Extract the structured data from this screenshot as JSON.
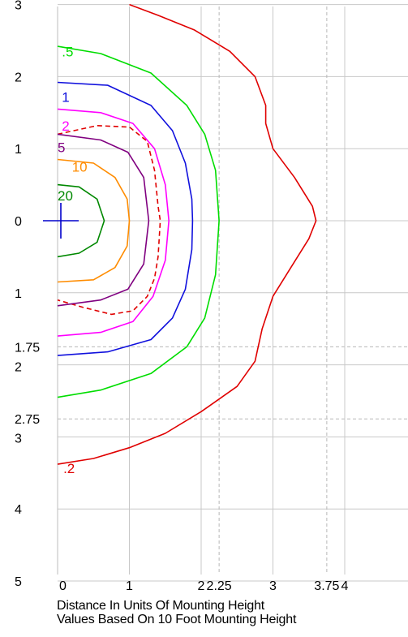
{
  "chart_data": {
    "type": "isofootcandle contour plot",
    "x_ticks": [
      {
        "value": 0,
        "label": "0"
      },
      {
        "value": 1,
        "label": "1"
      },
      {
        "value": 2,
        "label": "2"
      },
      {
        "value": 2.25,
        "label": "2.25",
        "dashed": true
      },
      {
        "value": 3,
        "label": "3"
      },
      {
        "value": 3.75,
        "label": "3.75",
        "dashed": true
      },
      {
        "value": 4,
        "label": "4"
      }
    ],
    "y_ticks": [
      {
        "value": 3,
        "label": "3"
      },
      {
        "value": 2,
        "label": "2"
      },
      {
        "value": 1,
        "label": "1"
      },
      {
        "value": 0,
        "label": "0"
      },
      {
        "value": -1,
        "label": "1"
      },
      {
        "value": -1.75,
        "label": "1.75",
        "dashed": true
      },
      {
        "value": -2,
        "label": "2"
      },
      {
        "value": -2.75,
        "label": "2.75",
        "dashed": true
      },
      {
        "value": -3,
        "label": "3"
      },
      {
        "value": -4,
        "label": "4"
      },
      {
        "value": -5,
        "label": "5"
      }
    ],
    "grid": true,
    "xlim": [
      0,
      4.8
    ],
    "ylim": [
      -5,
      3
    ],
    "caption_line1": "Distance In Units Of Mounting Height",
    "caption_line2": "Values Based On 10 Foot Mounting Height",
    "marker": {
      "type": "cross",
      "x": 0,
      "y": 0,
      "color": "#0000cc"
    },
    "contours": [
      {
        "label": ".2",
        "color": "#e00000",
        "dashed": false,
        "label_at": [
          0.08,
          -3.5
        ],
        "points": [
          [
            1.0,
            3.0
          ],
          [
            1.4,
            2.85
          ],
          [
            1.9,
            2.65
          ],
          [
            2.4,
            2.35
          ],
          [
            2.75,
            2.0
          ],
          [
            2.9,
            1.6
          ],
          [
            2.9,
            1.35
          ],
          [
            3.0,
            1.0
          ],
          [
            3.3,
            0.6
          ],
          [
            3.55,
            0.2
          ],
          [
            3.6,
            0
          ],
          [
            3.5,
            -0.25
          ],
          [
            3.25,
            -0.65
          ],
          [
            3.0,
            -1.05
          ],
          [
            2.85,
            -1.5
          ],
          [
            2.75,
            -1.95
          ],
          [
            2.5,
            -2.3
          ],
          [
            2.0,
            -2.65
          ],
          [
            1.5,
            -2.95
          ],
          [
            1.0,
            -3.15
          ],
          [
            0.5,
            -3.3
          ],
          [
            0,
            -3.38
          ]
        ]
      },
      {
        "label": ".5",
        "color": "#00dd00",
        "dashed": false,
        "label_at": [
          0.06,
          2.28
        ],
        "points": [
          [
            0,
            2.42
          ],
          [
            0.6,
            2.32
          ],
          [
            1.3,
            2.05
          ],
          [
            1.8,
            1.6
          ],
          [
            2.05,
            1.2
          ],
          [
            2.2,
            0.7
          ],
          [
            2.25,
            0
          ],
          [
            2.2,
            -0.75
          ],
          [
            2.05,
            -1.35
          ],
          [
            1.8,
            -1.75
          ],
          [
            1.3,
            -2.12
          ],
          [
            0.6,
            -2.35
          ],
          [
            0,
            -2.45
          ]
        ]
      },
      {
        "label": "1",
        "color": "#1010dd",
        "dashed": false,
        "label_at": [
          0.06,
          1.65
        ],
        "points": [
          [
            0,
            1.92
          ],
          [
            0.7,
            1.88
          ],
          [
            1.3,
            1.6
          ],
          [
            1.6,
            1.25
          ],
          [
            1.78,
            0.8
          ],
          [
            1.87,
            0.3
          ],
          [
            1.88,
            0
          ],
          [
            1.87,
            -0.4
          ],
          [
            1.78,
            -0.95
          ],
          [
            1.6,
            -1.35
          ],
          [
            1.3,
            -1.65
          ],
          [
            0.7,
            -1.82
          ],
          [
            0,
            -1.87
          ]
        ]
      },
      {
        "label": "2",
        "color": "#ff00ff",
        "dashed": false,
        "label_at": [
          0.06,
          1.25
        ],
        "points": [
          [
            0,
            1.55
          ],
          [
            0.6,
            1.5
          ],
          [
            1.05,
            1.35
          ],
          [
            1.35,
            1.0
          ],
          [
            1.5,
            0.5
          ],
          [
            1.55,
            0
          ],
          [
            1.5,
            -0.55
          ],
          [
            1.33,
            -1.05
          ],
          [
            1.05,
            -1.4
          ],
          [
            0.6,
            -1.55
          ],
          [
            0,
            -1.6
          ]
        ]
      },
      {
        "label": "",
        "color": "#e00000",
        "dashed": true,
        "label_at": null,
        "points": [
          [
            0,
            1.2
          ],
          [
            0.55,
            1.32
          ],
          [
            1.0,
            1.3
          ],
          [
            1.25,
            1.1
          ],
          [
            1.35,
            0.7
          ],
          [
            1.4,
            0.2
          ],
          [
            1.43,
            0
          ],
          [
            1.4,
            -0.5
          ],
          [
            1.35,
            -0.8
          ],
          [
            1.25,
            -1.05
          ],
          [
            1.05,
            -1.25
          ],
          [
            0.75,
            -1.3
          ],
          [
            0.35,
            -1.2
          ],
          [
            0,
            -1.1
          ]
        ]
      },
      {
        "label": "5",
        "color": "#800080",
        "dashed": false,
        "label_at": [
          0.0,
          0.95
        ],
        "points": [
          [
            0,
            1.2
          ],
          [
            0.6,
            1.12
          ],
          [
            0.98,
            0.95
          ],
          [
            1.2,
            0.6
          ],
          [
            1.27,
            0
          ],
          [
            1.2,
            -0.6
          ],
          [
            0.98,
            -0.95
          ],
          [
            0.6,
            -1.1
          ],
          [
            0,
            -1.18
          ]
        ]
      },
      {
        "label": "10",
        "color": "#ff8c00",
        "dashed": false,
        "label_at": [
          0.2,
          0.68
        ],
        "points": [
          [
            0,
            0.85
          ],
          [
            0.5,
            0.8
          ],
          [
            0.8,
            0.6
          ],
          [
            0.97,
            0.3
          ],
          [
            1.0,
            0
          ],
          [
            0.97,
            -0.35
          ],
          [
            0.8,
            -0.65
          ],
          [
            0.5,
            -0.82
          ],
          [
            0,
            -0.85
          ]
        ]
      },
      {
        "label": "20",
        "color": "#008800",
        "dashed": false,
        "label_at": [
          0.0,
          0.28
        ],
        "points": [
          [
            0,
            0.5
          ],
          [
            0.3,
            0.47
          ],
          [
            0.55,
            0.3
          ],
          [
            0.65,
            0
          ],
          [
            0.55,
            -0.3
          ],
          [
            0.3,
            -0.45
          ],
          [
            0,
            -0.5
          ]
        ]
      }
    ]
  }
}
